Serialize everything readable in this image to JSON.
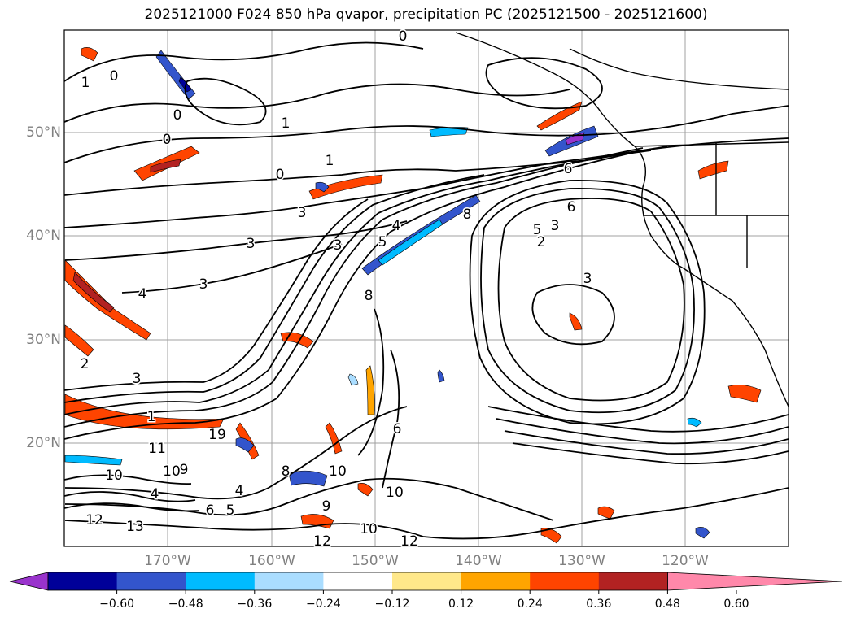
{
  "title": "2025121000 F024 850 hPa qvapor, precipitation PC (2025121500 - 2025121600)",
  "map": {
    "lat_labels": [
      "50°N",
      "40°N",
      "30°N",
      "20°N"
    ],
    "lon_labels": [
      "170°W",
      "160°W",
      "150°W",
      "140°W",
      "130°W",
      "120°W"
    ],
    "contour_labels": [
      {
        "text": "1"
      },
      {
        "text": "0"
      },
      {
        "text": "0"
      },
      {
        "text": "0"
      },
      {
        "text": "0"
      },
      {
        "text": "1"
      },
      {
        "text": "0"
      },
      {
        "text": "1"
      },
      {
        "text": "3"
      },
      {
        "text": "3"
      },
      {
        "text": "3"
      },
      {
        "text": "3"
      },
      {
        "text": "4"
      },
      {
        "text": "4"
      },
      {
        "text": "5"
      },
      {
        "text": "6"
      },
      {
        "text": "8"
      },
      {
        "text": "6"
      },
      {
        "text": "5"
      },
      {
        "text": "3"
      },
      {
        "text": "2"
      },
      {
        "text": "3"
      },
      {
        "text": "2"
      },
      {
        "text": "8"
      },
      {
        "text": "19"
      },
      {
        "text": "11"
      },
      {
        "text": "10"
      },
      {
        "text": "9"
      },
      {
        "text": "8"
      },
      {
        "text": "10"
      },
      {
        "text": "10"
      },
      {
        "text": "9"
      },
      {
        "text": "10"
      },
      {
        "text": "12"
      },
      {
        "text": "12"
      },
      {
        "text": "13"
      },
      {
        "text": "12"
      },
      {
        "text": "4"
      },
      {
        "text": "5"
      },
      {
        "text": "6"
      },
      {
        "text": "10"
      },
      {
        "text": "3"
      },
      {
        "text": "4"
      },
      {
        "text": "6"
      },
      {
        "text": "1"
      }
    ]
  },
  "colorbar": {
    "colors": [
      "#9933cc",
      "#000099",
      "#3355cc",
      "#00bbff",
      "#aaddff",
      "#ffffff",
      "#ffe88a",
      "#ffa500",
      "#ff4400",
      "#b22222",
      "#ff88aa"
    ],
    "tick_labels": [
      "−0.60",
      "−0.48",
      "−0.36",
      "−0.24",
      "−0.12",
      "0.12",
      "0.24",
      "0.36",
      "0.48",
      "0.60"
    ]
  }
}
